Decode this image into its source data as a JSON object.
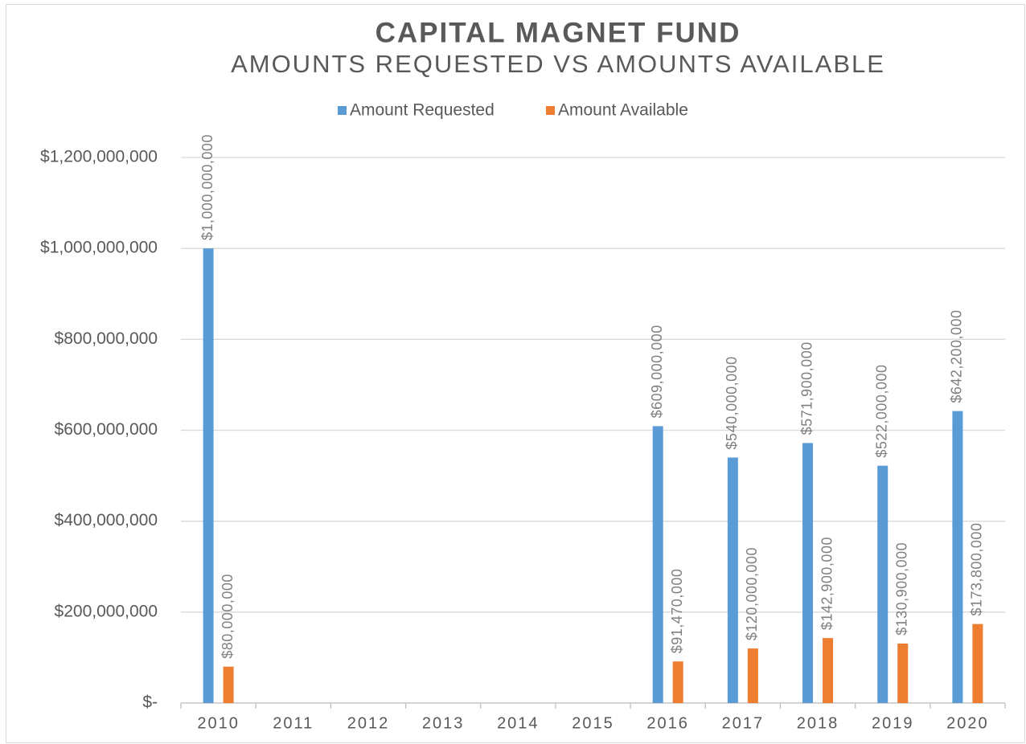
{
  "chart_data": {
    "type": "bar",
    "title": "CAPITAL MAGNET FUND",
    "subtitle": "AMOUNTS REQUESTED VS AMOUNTS AVAILABLE",
    "categories": [
      "2010",
      "2011",
      "2012",
      "2013",
      "2014",
      "2015",
      "2016",
      "2017",
      "2018",
      "2019",
      "2020"
    ],
    "series": [
      {
        "name": "Amount Requested",
        "color": "#5b9bd5",
        "values": [
          1000000000,
          null,
          null,
          null,
          null,
          null,
          609000000,
          540000000,
          571900000,
          522000000,
          642200000
        ],
        "value_labels": [
          "$1,000,000,000",
          null,
          null,
          null,
          null,
          null,
          "$609,000,000",
          "$540,000,000",
          "$571,900,000",
          "$522,000,000",
          "$642,200,000"
        ]
      },
      {
        "name": "Amount Available",
        "color": "#ed7d31",
        "values": [
          80000000,
          null,
          null,
          null,
          null,
          null,
          91470000,
          120000000,
          142900000,
          130900000,
          173800000
        ],
        "value_labels": [
          "$80,000,000",
          null,
          null,
          null,
          null,
          null,
          "$91,470,000",
          "$120,000,000",
          "$142,900,000",
          "$130,900,000",
          "$173,800,000"
        ]
      }
    ],
    "ylim": [
      0,
      1200000000
    ],
    "yticks": [
      {
        "value": 0,
        "label": "$-"
      },
      {
        "value": 200000000,
        "label": "$200,000,000"
      },
      {
        "value": 400000000,
        "label": "$400,000,000"
      },
      {
        "value": 600000000,
        "label": "$600,000,000"
      },
      {
        "value": 800000000,
        "label": "$800,000,000"
      },
      {
        "value": 1000000000,
        "label": "$1,000,000,000"
      },
      {
        "value": 1200000000,
        "label": "$1,200,000,000"
      }
    ],
    "grid": true,
    "legend": "top"
  }
}
